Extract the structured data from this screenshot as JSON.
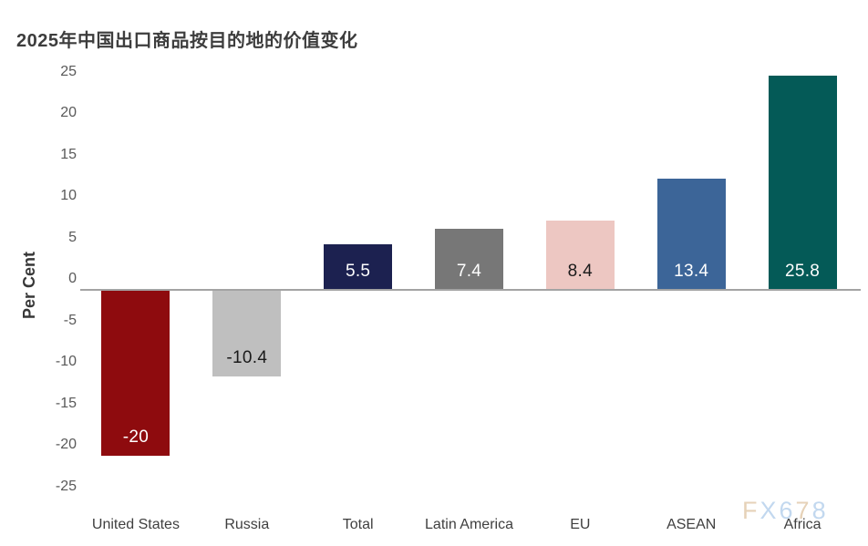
{
  "title": "2025年中国出口商品按目的地的价值变化",
  "watermark": {
    "text": "FX678",
    "letters": [
      {
        "char": "F",
        "color": "#e6d2b8"
      },
      {
        "char": "X",
        "color": "#c2d8ef"
      },
      {
        "char": "6",
        "color": "#c2d8ef"
      },
      {
        "char": "7",
        "color": "#e6d2b8"
      },
      {
        "char": "8",
        "color": "#c2d8ef"
      }
    ]
  },
  "chart_data": {
    "type": "bar",
    "title": "2025年中国出口商品按目的地的价值变化",
    "xlabel": "",
    "ylabel": "Per Cent",
    "ylim": [
      -25,
      25
    ],
    "yticks": [
      25,
      20,
      15,
      10,
      5,
      0,
      -5,
      -10,
      -15,
      -20,
      -25
    ],
    "grid": false,
    "legend": null,
    "categories": [
      "United States",
      "Russia",
      "Total",
      "Latin America",
      "EU",
      "ASEAN",
      "Africa"
    ],
    "values": [
      -20,
      -10.4,
      5.5,
      7.4,
      8.4,
      13.4,
      25.8
    ],
    "value_labels": [
      "-20",
      "-10.4",
      "5.5",
      "7.4",
      "8.4",
      "13.4",
      "25.8"
    ],
    "bar_colors": [
      "#8e0b0e",
      "#bfbfbf",
      "#1c2150",
      "#777777",
      "#edc7c2",
      "#3c6598",
      "#045a57"
    ],
    "value_label_colors": [
      "#ffffff",
      "#1a1a1a",
      "#ffffff",
      "#ffffff",
      "#1a1a1a",
      "#ffffff",
      "#ffffff"
    ],
    "colors": {
      "axis_line": "#a3a3a3",
      "tick_text": "#595959",
      "category_text": "#3f3f3f",
      "title_text": "#3d3d3d"
    }
  }
}
